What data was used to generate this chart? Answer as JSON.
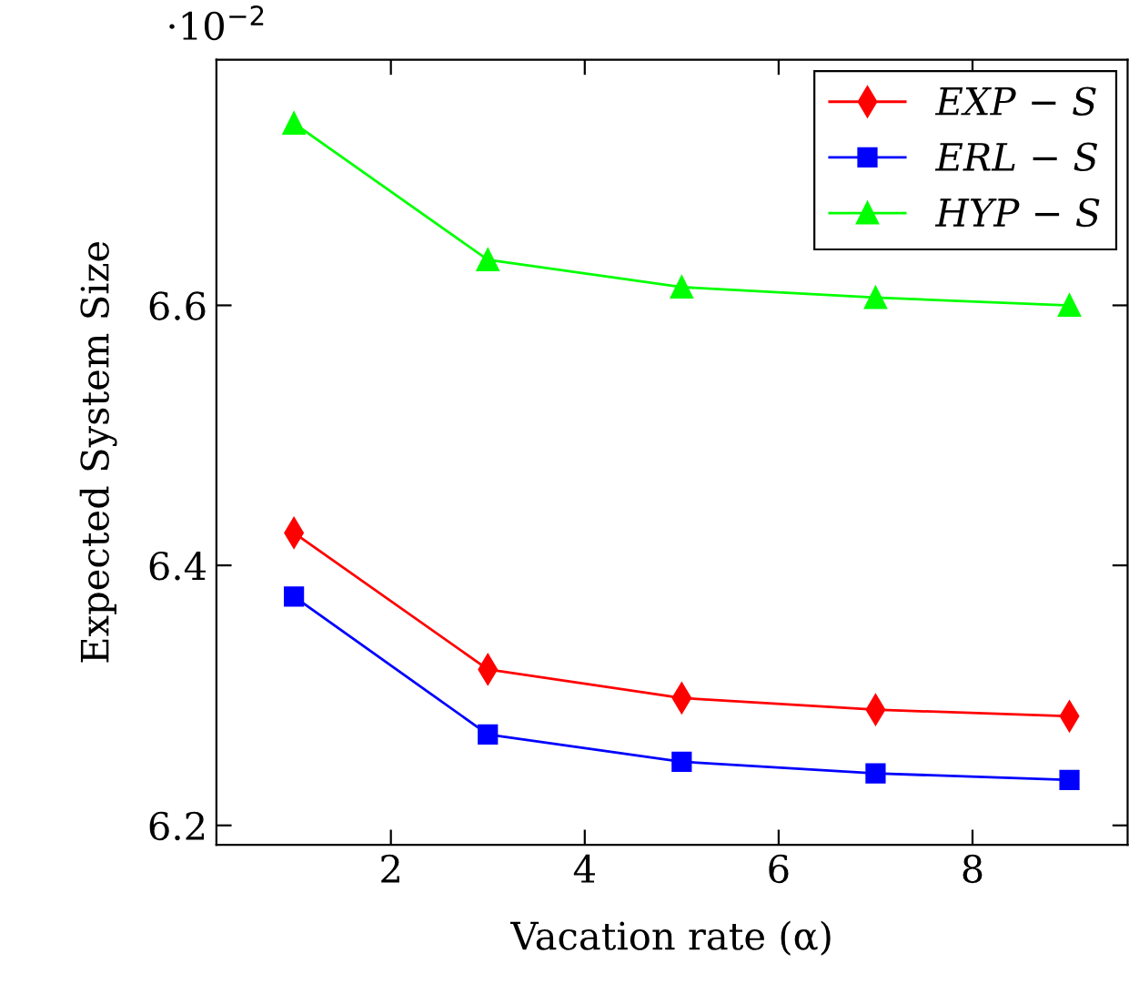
{
  "chart_data": {
    "type": "line",
    "xlabel": "Vacation rate (α)",
    "ylabel": "Expected System Size",
    "annotations": [
      "·10$^{−2}$"
    ],
    "x": [
      1,
      3,
      5,
      7,
      9
    ],
    "series": [
      {
        "name": "EXP − S",
        "color": "#ff0000",
        "marker": "diamond",
        "values": [
          6.425,
          6.32,
          6.298,
          6.289,
          6.284
        ]
      },
      {
        "name": "ERL − S",
        "color": "#0000ff",
        "marker": "square",
        "values": [
          6.376,
          6.27,
          6.249,
          6.24,
          6.235
        ]
      },
      {
        "name": "HYP − S",
        "color": "#00ff00",
        "marker": "triangle",
        "values": [
          6.74,
          6.635,
          6.614,
          6.606,
          6.6
        ]
      }
    ],
    "xlim": [
      0.2,
      9.6
    ],
    "xticks": [
      2,
      4,
      6,
      8
    ],
    "ylim": [
      6.185,
      6.789
    ],
    "yticks": [
      6.2,
      6.4,
      6.6
    ],
    "grid": false,
    "legend": "top right",
    "line_style": "solid"
  }
}
